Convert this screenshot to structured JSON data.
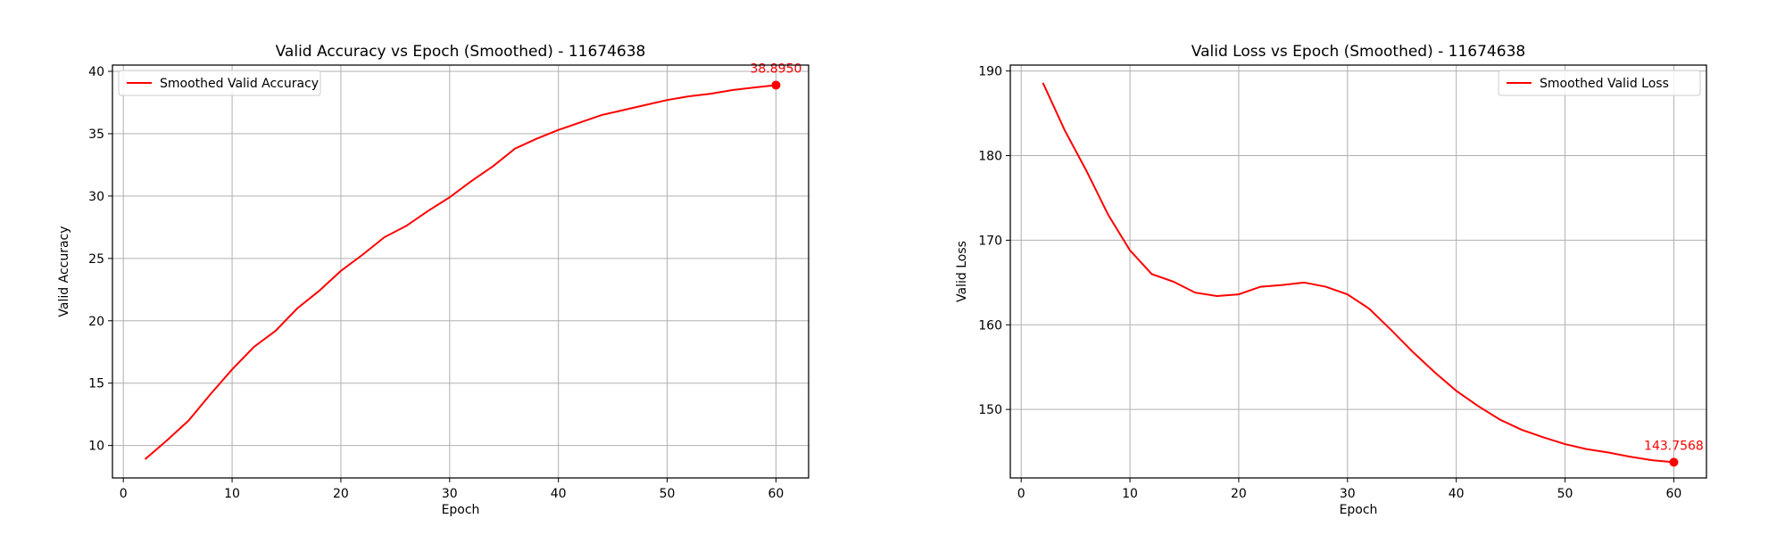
{
  "chart_data": [
    {
      "type": "line",
      "title": "Valid Accuracy vs Epoch (Smoothed) - 11674638",
      "xlabel": "Epoch",
      "ylabel": "Valid Accuracy",
      "xlim": [
        -1,
        63
      ],
      "ylim": [
        7.4,
        40.5
      ],
      "xticks": [
        0,
        10,
        20,
        30,
        40,
        50,
        60
      ],
      "yticks": [
        10,
        15,
        20,
        25,
        30,
        35,
        40
      ],
      "grid": true,
      "legend": "top-left",
      "color": "#ff0000",
      "series": [
        {
          "name": "Smoothed Valid Accuracy",
          "x": [
            2,
            4,
            6,
            8,
            10,
            12,
            14,
            16,
            18,
            20,
            22,
            24,
            26,
            28,
            30,
            32,
            34,
            36,
            38,
            40,
            42,
            44,
            46,
            48,
            50,
            52,
            54,
            56,
            58,
            60
          ],
          "y": [
            8.9,
            10.4,
            12.0,
            14.1,
            16.1,
            17.9,
            19.2,
            21.0,
            22.4,
            24.0,
            25.3,
            26.7,
            27.6,
            28.8,
            29.9,
            31.2,
            32.4,
            33.8,
            34.6,
            35.3,
            35.9,
            36.5,
            36.9,
            37.3,
            37.7,
            38.0,
            38.2,
            38.5,
            38.7,
            38.895
          ]
        }
      ],
      "annotation": {
        "x": 60,
        "y": 38.895,
        "label": "38.8950"
      }
    },
    {
      "type": "line",
      "title": "Valid Loss vs Epoch (Smoothed) - 11674638",
      "xlabel": "Epoch",
      "ylabel": "Valid Loss",
      "xlim": [
        -1,
        63
      ],
      "ylim": [
        141.9,
        190.7
      ],
      "xticks": [
        0,
        10,
        20,
        30,
        40,
        50,
        60
      ],
      "yticks": [
        150,
        160,
        170,
        180,
        190
      ],
      "grid": true,
      "legend": "top-right",
      "color": "#ff0000",
      "series": [
        {
          "name": "Smoothed Valid Loss",
          "x": [
            2,
            4,
            6,
            8,
            10,
            12,
            14,
            16,
            18,
            20,
            22,
            24,
            26,
            28,
            30,
            32,
            34,
            36,
            38,
            40,
            42,
            44,
            46,
            48,
            50,
            52,
            54,
            56,
            58,
            60
          ],
          "y": [
            188.6,
            183.0,
            178.2,
            173.0,
            168.8,
            166.0,
            165.1,
            163.8,
            163.4,
            163.6,
            164.5,
            164.7,
            165.0,
            164.5,
            163.6,
            161.9,
            159.4,
            156.8,
            154.4,
            152.2,
            150.4,
            148.8,
            147.6,
            146.7,
            145.9,
            145.3,
            144.9,
            144.4,
            144.0,
            143.7568
          ]
        }
      ],
      "annotation": {
        "x": 60,
        "y": 143.7568,
        "label": "143.7568"
      }
    }
  ]
}
